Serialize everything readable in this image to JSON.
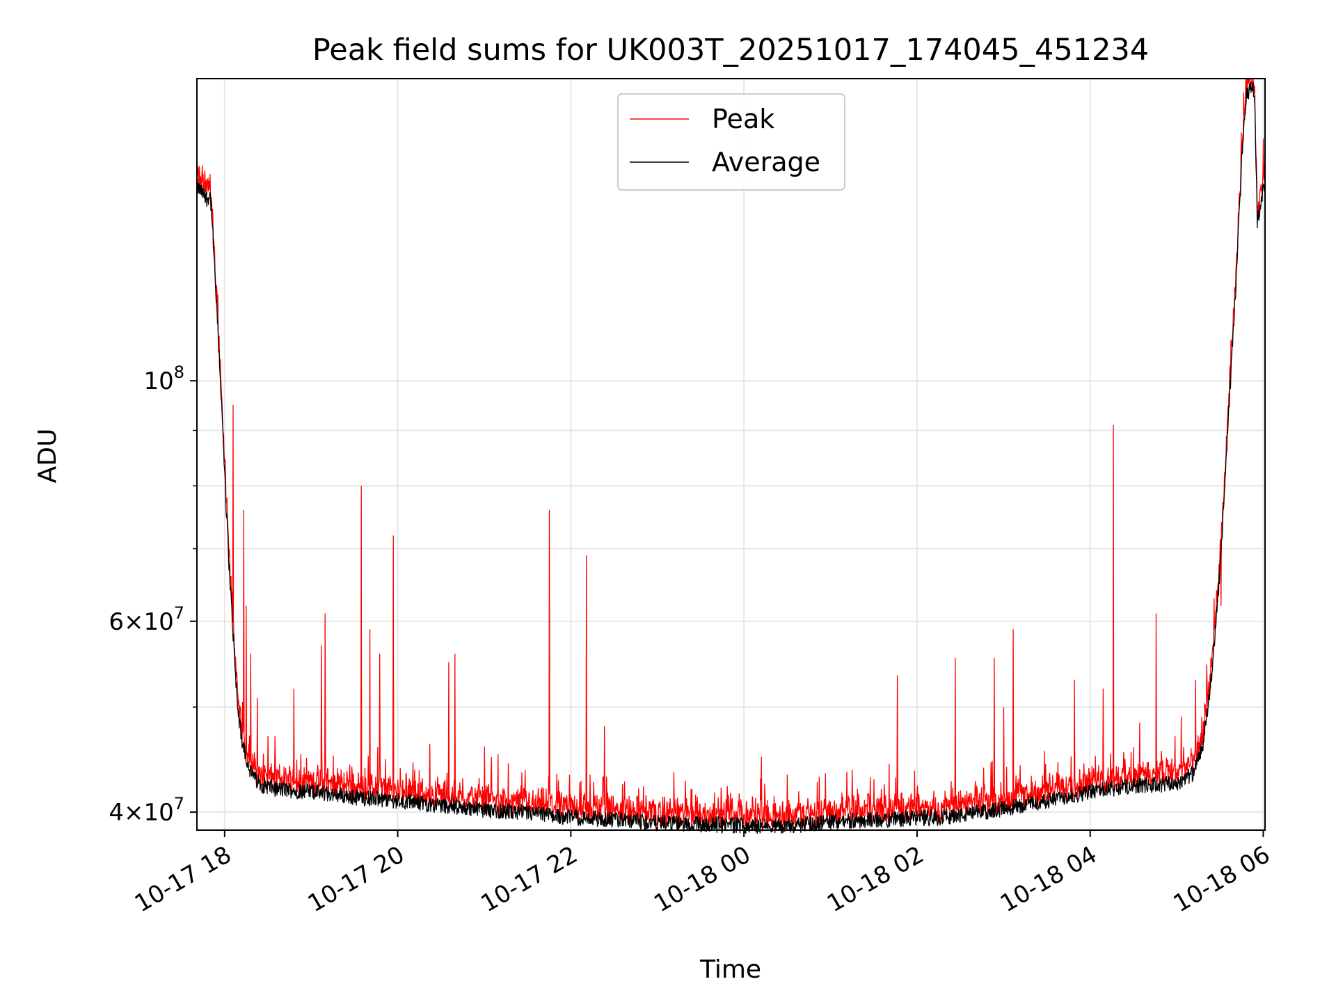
{
  "chart_data": {
    "type": "line",
    "title": "Peak field sums for UK003T_20251017_174045_451234",
    "xlabel": "Time",
    "ylabel": "ADU",
    "yscale": "log",
    "grid": true,
    "legend_position": "upper-center",
    "xlim_hours": [
      17.68,
      30.02
    ],
    "ylim": [
      38500000,
      190000000
    ],
    "x_ticks": [
      {
        "hour": 18,
        "label": "10-17 18"
      },
      {
        "hour": 20,
        "label": "10-17 20"
      },
      {
        "hour": 22,
        "label": "10-17 22"
      },
      {
        "hour": 24,
        "label": "10-18 00"
      },
      {
        "hour": 26,
        "label": "10-18 02"
      },
      {
        "hour": 28,
        "label": "10-18 04"
      },
      {
        "hour": 30,
        "label": "10-18 06"
      }
    ],
    "y_ticks": [
      {
        "value": 40000000,
        "base": "4",
        "exp": "7"
      },
      {
        "value": 60000000,
        "base": "6",
        "exp": "7"
      },
      {
        "value": 100000000,
        "base": "10",
        "exp": "8"
      }
    ],
    "y_minor_ticks": [
      50000000,
      70000000,
      80000000,
      90000000
    ],
    "series": [
      {
        "name": "Peak",
        "color": "#ff0000"
      },
      {
        "name": "Average",
        "color": "#000000"
      }
    ],
    "average_profile": {
      "hours": [
        17.68,
        17.8,
        17.83,
        17.85,
        17.9,
        17.95,
        18.0,
        18.05,
        18.1,
        18.15,
        18.2,
        18.3,
        18.4,
        18.6,
        19.0,
        19.5,
        20.0,
        21.0,
        22.0,
        23.0,
        24.0,
        24.5,
        25.0,
        26.0,
        26.5,
        27.0,
        27.5,
        28.0,
        28.5,
        29.0,
        29.2,
        29.3,
        29.4,
        29.5,
        29.6,
        29.7,
        29.75,
        29.8,
        29.85,
        29.9,
        29.93,
        29.97,
        30.0,
        30.02
      ],
      "values": [
        151000000,
        147000000,
        149000000,
        143000000,
        120000000,
        101000000,
        82000000,
        68000000,
        58000000,
        50000000,
        46500000,
        43500000,
        42500000,
        42000000,
        41800000,
        41300000,
        41000000,
        40200000,
        39600000,
        39100000,
        38900000,
        38800000,
        39200000,
        39500000,
        39700000,
        40300000,
        41000000,
        41800000,
        42300000,
        42500000,
        43500000,
        46000000,
        53000000,
        67000000,
        93000000,
        130000000,
        160000000,
        183000000,
        186000000,
        185000000,
        140000000,
        146000000,
        150000000,
        151000000
      ]
    },
    "peak_spikes": [
      {
        "hour": 17.74,
        "value": 158000000
      },
      {
        "hour": 18.1,
        "value": 95000000
      },
      {
        "hour": 18.22,
        "value": 76000000
      },
      {
        "hour": 18.25,
        "value": 62000000
      },
      {
        "hour": 18.3,
        "value": 56000000
      },
      {
        "hour": 18.38,
        "value": 51000000
      },
      {
        "hour": 18.5,
        "value": 47000000
      },
      {
        "hour": 18.58,
        "value": 47000000
      },
      {
        "hour": 18.8,
        "value": 52000000
      },
      {
        "hour": 19.12,
        "value": 57000000
      },
      {
        "hour": 19.16,
        "value": 61000000
      },
      {
        "hour": 19.58,
        "value": 80000000
      },
      {
        "hour": 19.68,
        "value": 59000000
      },
      {
        "hour": 19.79,
        "value": 56000000
      },
      {
        "hour": 19.95,
        "value": 72000000
      },
      {
        "hour": 20.59,
        "value": 55000000
      },
      {
        "hour": 20.66,
        "value": 56000000
      },
      {
        "hour": 21.0,
        "value": 46000000
      },
      {
        "hour": 21.75,
        "value": 76000000
      },
      {
        "hour": 22.18,
        "value": 69000000
      },
      {
        "hour": 22.39,
        "value": 48000000
      },
      {
        "hour": 23.4,
        "value": 42000000
      },
      {
        "hour": 23.82,
        "value": 41500000
      },
      {
        "hour": 24.2,
        "value": 45000000
      },
      {
        "hour": 25.77,
        "value": 53500000
      },
      {
        "hour": 26.44,
        "value": 55500000
      },
      {
        "hour": 26.89,
        "value": 55500000
      },
      {
        "hour": 27.0,
        "value": 50000000
      },
      {
        "hour": 27.11,
        "value": 59000000
      },
      {
        "hour": 27.82,
        "value": 53000000
      },
      {
        "hour": 28.15,
        "value": 52000000
      },
      {
        "hour": 28.27,
        "value": 91000000
      },
      {
        "hour": 28.76,
        "value": 61000000
      },
      {
        "hour": 28.98,
        "value": 47000000
      },
      {
        "hour": 29.05,
        "value": 49000000
      },
      {
        "hour": 29.22,
        "value": 53000000
      },
      {
        "hour": 29.43,
        "value": 63000000
      },
      {
        "hour": 29.51,
        "value": 62000000
      }
    ]
  }
}
